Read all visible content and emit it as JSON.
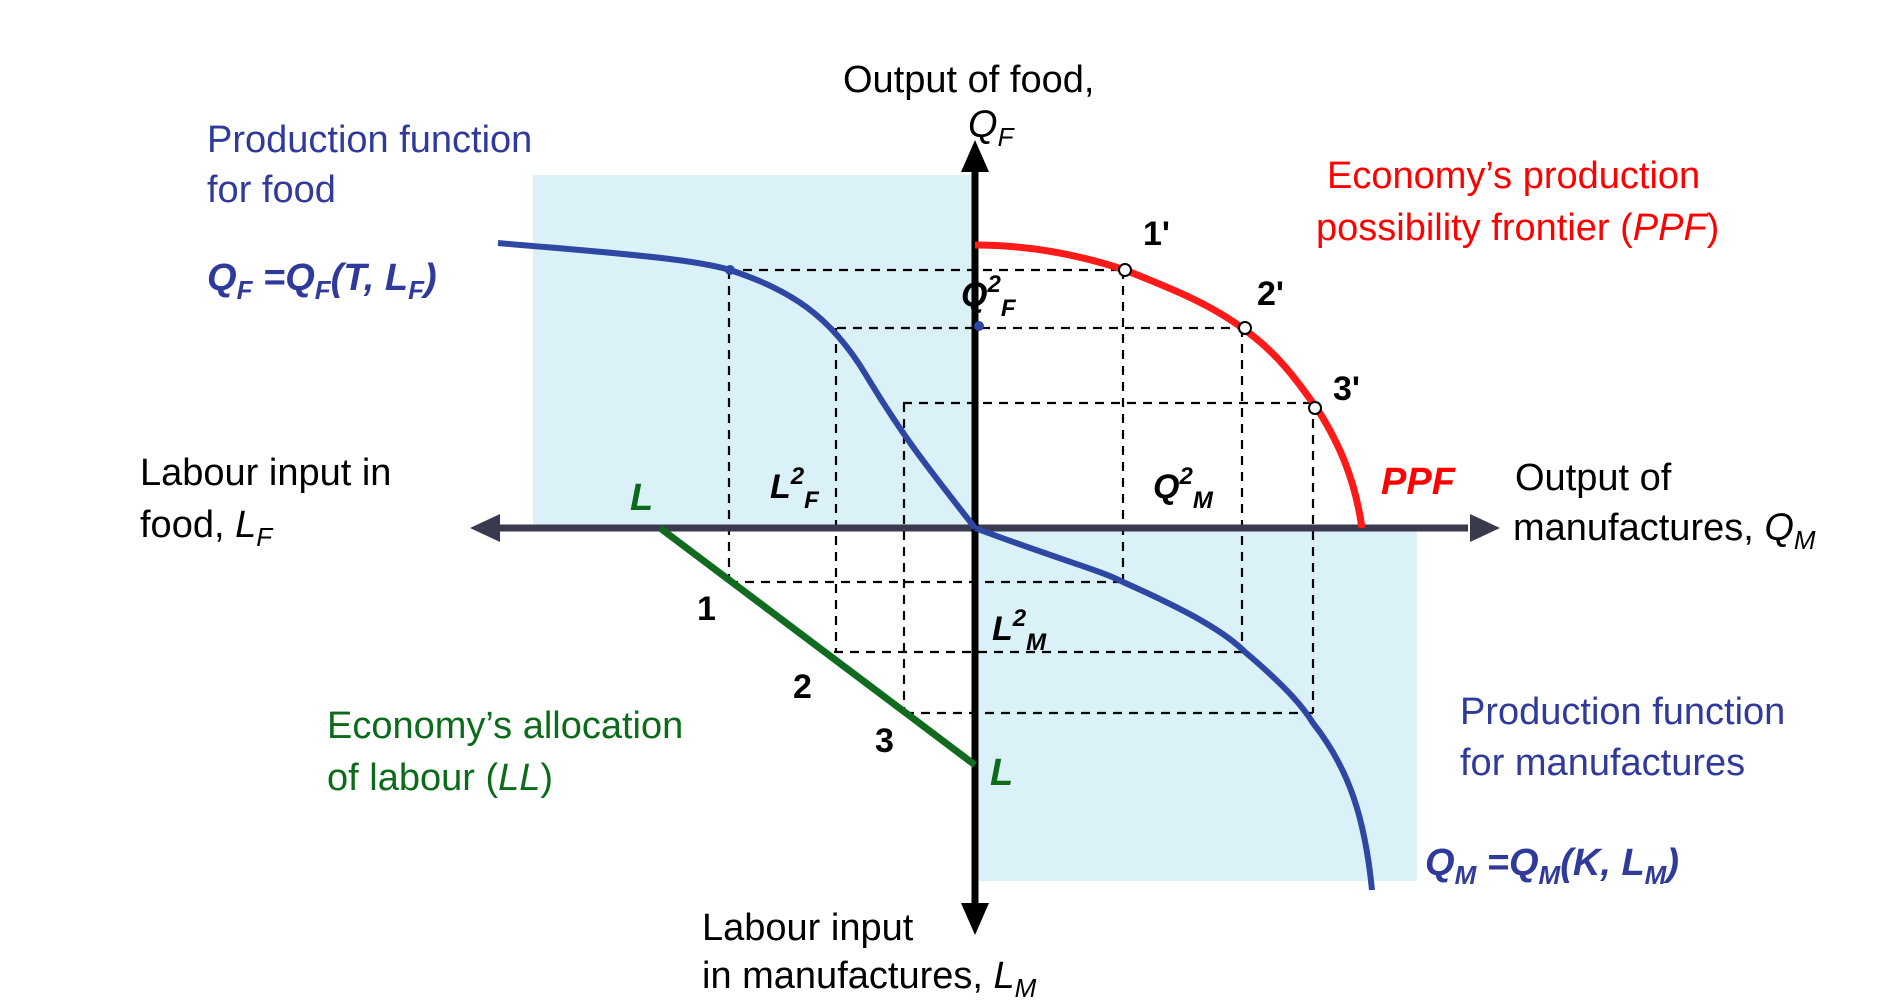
{
  "colors": {
    "panel": "#daf1f7",
    "axis_h": "#3a3a4e",
    "axis_v": "#000000",
    "food_fn": "#2e47a3",
    "ppf": "#ff1a1a",
    "ll": "#116b1f",
    "label_blue": "#2f3a9a"
  },
  "axes": {
    "food_output_line1": "Output of food,",
    "food_output_sym": "Q",
    "food_output_sub": "F",
    "manuf_output_line1": "Output of",
    "manuf_output_line2": "manufactures,",
    "manuf_output_sym": "Q",
    "manuf_output_sub": "M",
    "labour_food_line1": "Labour input in",
    "labour_food_line2": "food,",
    "labour_food_sym": "L",
    "labour_food_sub": "F",
    "labour_manuf_line1": "Labour input",
    "labour_manuf_line2": "in manufactures,",
    "labour_manuf_sym": "L",
    "labour_manuf_sub": "M"
  },
  "food_function": {
    "title_line1": "Production function",
    "title_line2": "for food",
    "formula": {
      "lhs": "Q",
      "lhs_sub": "F",
      "eq": " =",
      "rhs": "Q",
      "rhs_sub": "F",
      "args_open": "(",
      "arg1": "T",
      "comma": ", ",
      "arg2": "L",
      "arg2_sub": "F",
      "args_close": ")"
    }
  },
  "manuf_function": {
    "title_line1": "Production function",
    "title_line2": "for manufactures",
    "formula": {
      "lhs": "Q",
      "lhs_sub": "M",
      "eq": " =",
      "rhs": "Q",
      "rhs_sub": "M",
      "args_open": "(",
      "arg1": "K",
      "comma": ", ",
      "arg2": "L",
      "arg2_sub": "M",
      "args_close": ")"
    }
  },
  "ppf": {
    "title_line1": "Economy’s production",
    "title_line2_pre": "possibility frontier (",
    "title_line2_it": "PPF",
    "title_line2_post": ")",
    "curve_label": "PPF",
    "points": [
      "1'",
      "2'",
      "3'"
    ]
  },
  "allocation": {
    "title_line1": "Economy’s allocation",
    "title_line2_pre": "of labour (",
    "title_line2_it": "LL",
    "title_line2_post": ")",
    "end_label_top": "L",
    "end_label_bottom": "L",
    "points": [
      "1",
      "2",
      "3"
    ]
  },
  "markers": {
    "qf2_sym": "Q",
    "qf2_sup": "2",
    "qf2_sub": "F",
    "qm2_sym": "Q",
    "qm2_sup": "2",
    "qm2_sub": "M",
    "lf2_sym": "L",
    "lf2_sup": "2",
    "lf2_sub": "F",
    "lm2_sym": "L",
    "lm2_sup": "2",
    "lm2_sub": "M"
  }
}
